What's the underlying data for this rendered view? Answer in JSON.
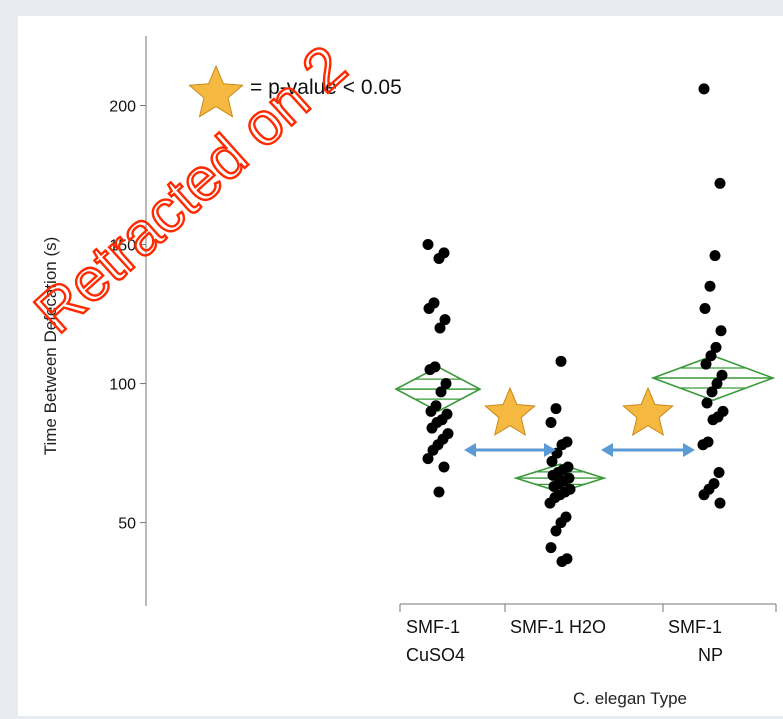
{
  "chart_data": {
    "type": "scatter",
    "title": "",
    "xlabel": "C. elegan Type",
    "ylabel": "Time Between Defecation (s)",
    "ylim": [
      20,
      225
    ],
    "yticks": [
      50,
      100,
      150,
      200
    ],
    "legend_text": "= p-value < 0.05",
    "watermark": "Retracted on 2",
    "categories": [
      {
        "line1": "SMF-1",
        "line2": "CuSO4"
      },
      {
        "line1": "SMF-1 H2O",
        "line2": ""
      },
      {
        "line1": "SMF-1",
        "line2": "NP"
      }
    ],
    "series": [
      {
        "values": [
          150,
          147,
          145,
          129,
          127,
          123,
          120,
          106,
          105,
          100,
          97,
          92,
          90,
          89,
          87,
          86,
          84,
          82,
          80,
          78,
          76,
          73,
          70,
          61
        ]
      },
      {
        "values": [
          108,
          91,
          86,
          79,
          78,
          75,
          72,
          70,
          69,
          68,
          67,
          66,
          65,
          64,
          63,
          62,
          61,
          60,
          59,
          57,
          52,
          50,
          47,
          41,
          37,
          36
        ]
      },
      {
        "values": [
          206,
          172,
          146,
          135,
          127,
          119,
          113,
          110,
          107,
          103,
          100,
          97,
          93,
          90,
          88,
          87,
          79,
          78,
          68,
          64,
          62,
          60,
          57
        ]
      }
    ],
    "means": [
      98,
      66,
      102
    ],
    "ci": [
      [
        90,
        106
      ],
      [
        61,
        71
      ],
      [
        94,
        110
      ]
    ],
    "significance": [
      {
        "from": 0,
        "to": 1
      },
      {
        "from": 1,
        "to": 2
      }
    ],
    "colors": {
      "point": "#000000",
      "diamond": "#3a9a3a",
      "arrow": "#5b9bd5",
      "star": "#f5b841",
      "watermark": "#ff2a00"
    }
  }
}
